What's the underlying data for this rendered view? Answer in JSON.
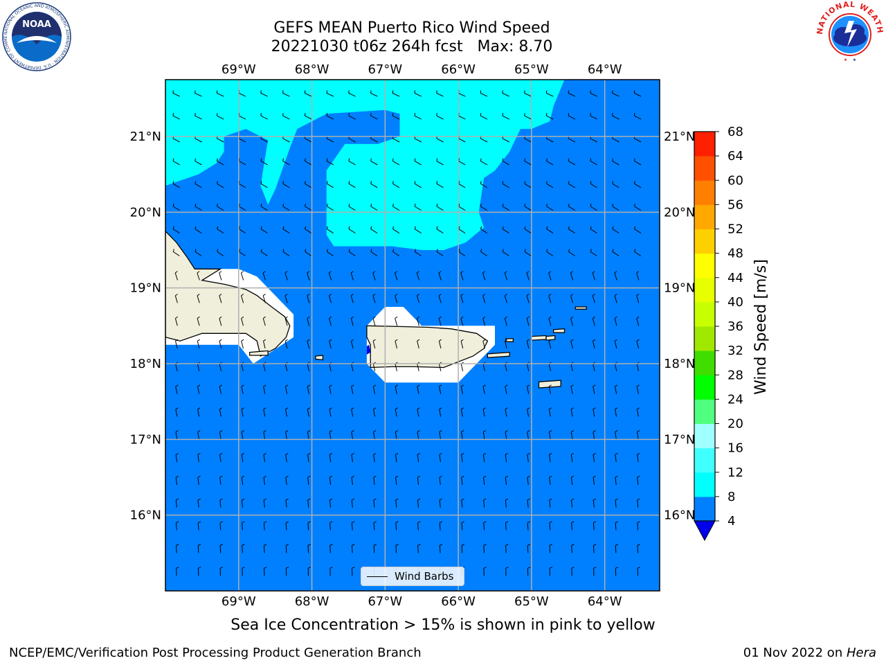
{
  "title_line1": "GEFS MEAN Puerto Rico Wind Speed",
  "title_line2": "20221030 t06z 264h fcst   Max: 8.70",
  "note": "Sea Ice Concentration > 15% is shown in pink to yellow",
  "footer_left": "NCEP/EMC/Verification Post Processing Product Generation Branch",
  "footer_right_date": "01 Nov 2022 on ",
  "footer_right_machine": "Hera",
  "legend_label": "Wind Barbs",
  "logos": {
    "noaa": {
      "text": "NOAA",
      "ring_text": "NATIONAL OCEANIC AND ATMOSPHERIC ADMINISTRATION · U.S. DEPARTMENT OF COMMERCE"
    },
    "nws": {
      "ring_text": "NATIONAL WEATHER SERVICE"
    }
  },
  "map": {
    "lon_range": [
      -70,
      -63.25
    ],
    "lat_range": [
      15,
      21.75
    ],
    "lon_ticks": [
      {
        "value": -69,
        "label": "69°W"
      },
      {
        "value": -68,
        "label": "68°W"
      },
      {
        "value": -67,
        "label": "67°W"
      },
      {
        "value": -66,
        "label": "66°W"
      },
      {
        "value": -65,
        "label": "65°W"
      },
      {
        "value": -64,
        "label": "64°W"
      }
    ],
    "lat_ticks": [
      {
        "value": 21,
        "label": "21°N"
      },
      {
        "value": 20,
        "label": "20°N"
      },
      {
        "value": 19,
        "label": "19°N"
      },
      {
        "value": 18,
        "label": "18°N"
      },
      {
        "value": 17,
        "label": "17°N"
      },
      {
        "value": 16,
        "label": "16°N"
      }
    ],
    "colors": {
      "ocean_4_8": "#0080ff",
      "wind_8_12": "#00ffff",
      "land": "#efefdb",
      "masked": "#ffffff",
      "grid": "#b0b0b0",
      "below_4": "#0000ee"
    },
    "regions": {
      "wind_8_12": [
        [
          [
            -70,
            21.75
          ],
          [
            -64.55,
            21.75
          ],
          [
            -64.7,
            21.4
          ],
          [
            -64.75,
            21.2
          ],
          [
            -65.0,
            21.1
          ],
          [
            -65.15,
            21.1
          ],
          [
            -65.2,
            21.0
          ],
          [
            -65.3,
            20.8
          ],
          [
            -65.5,
            20.55
          ],
          [
            -65.65,
            20.45
          ],
          [
            -65.72,
            20.0
          ],
          [
            -65.65,
            19.8
          ],
          [
            -65.9,
            19.6
          ],
          [
            -66.2,
            19.5
          ],
          [
            -66.5,
            19.5
          ],
          [
            -66.9,
            19.55
          ],
          [
            -67.25,
            19.55
          ],
          [
            -67.7,
            19.55
          ],
          [
            -67.8,
            19.7
          ],
          [
            -67.8,
            20.55
          ],
          [
            -67.55,
            20.9
          ],
          [
            -67.1,
            20.9
          ],
          [
            -66.8,
            21.0
          ],
          [
            -66.8,
            21.3
          ],
          [
            -67.0,
            21.35
          ],
          [
            -67.8,
            21.3
          ],
          [
            -68.2,
            21.1
          ],
          [
            -68.3,
            20.85
          ],
          [
            -68.5,
            20.3
          ],
          [
            -68.6,
            20.1
          ],
          [
            -68.7,
            20.35
          ],
          [
            -68.6,
            20.95
          ],
          [
            -68.9,
            21.1
          ],
          [
            -69.2,
            21.0
          ],
          [
            -69.2,
            20.8
          ],
          [
            -69.3,
            20.65
          ],
          [
            -69.55,
            20.5
          ],
          [
            -70,
            20.35
          ]
        ]
      ]
    },
    "islands": {
      "hispaniola": [
        [
          -70,
          19.75
        ],
        [
          -69.85,
          19.6
        ],
        [
          -69.7,
          19.4
        ],
        [
          -69.6,
          19.25
        ],
        [
          -69.25,
          19.25
        ],
        [
          -69.5,
          19.1
        ],
        [
          -69.2,
          19.05
        ],
        [
          -68.9,
          18.98
        ],
        [
          -68.75,
          18.9
        ],
        [
          -68.55,
          18.75
        ],
        [
          -68.37,
          18.62
        ],
        [
          -68.3,
          18.5
        ],
        [
          -68.35,
          18.35
        ],
        [
          -68.5,
          18.2
        ],
        [
          -68.6,
          18.15
        ],
        [
          -68.7,
          18.1
        ],
        [
          -68.75,
          18.3
        ],
        [
          -68.9,
          18.4
        ],
        [
          -69.2,
          18.4
        ],
        [
          -69.5,
          18.4
        ],
        [
          -69.8,
          18.3
        ],
        [
          -70,
          18.35
        ]
      ],
      "puerto_rico": [
        [
          -67.25,
          18.5
        ],
        [
          -66.8,
          18.49
        ],
        [
          -66.4,
          18.48
        ],
        [
          -66.1,
          18.46
        ],
        [
          -65.75,
          18.4
        ],
        [
          -65.6,
          18.3
        ],
        [
          -65.65,
          18.2
        ],
        [
          -65.8,
          18.1
        ],
        [
          -66.2,
          17.95
        ],
        [
          -66.6,
          17.96
        ],
        [
          -66.9,
          17.96
        ],
        [
          -67.2,
          17.95
        ],
        [
          -67.2,
          18.1
        ],
        [
          -67.2,
          18.25
        ],
        [
          -67.25,
          18.35
        ]
      ],
      "vieques": [
        [
          -65.6,
          18.13
        ],
        [
          -65.3,
          18.15
        ],
        [
          -65.3,
          18.1
        ],
        [
          -65.6,
          18.08
        ]
      ],
      "mona": [
        [
          -67.95,
          18.1
        ],
        [
          -67.85,
          18.11
        ],
        [
          -67.85,
          18.05
        ],
        [
          -67.95,
          18.06
        ]
      ],
      "saona": [
        [
          -68.85,
          18.15
        ],
        [
          -68.6,
          18.17
        ],
        [
          -68.6,
          18.11
        ],
        [
          -68.85,
          18.11
        ]
      ],
      "st_croix": [
        [
          -64.9,
          17.76
        ],
        [
          -64.6,
          17.78
        ],
        [
          -64.6,
          17.7
        ],
        [
          -64.9,
          17.68
        ]
      ],
      "culebra": [
        [
          -65.35,
          18.33
        ],
        [
          -65.25,
          18.33
        ],
        [
          -65.25,
          18.29
        ],
        [
          -65.35,
          18.29
        ]
      ],
      "st_thomas": [
        [
          -65.0,
          18.36
        ],
        [
          -64.8,
          18.37
        ],
        [
          -64.8,
          18.32
        ],
        [
          -65.0,
          18.31
        ]
      ],
      "st_john": [
        [
          -64.8,
          18.36
        ],
        [
          -64.68,
          18.37
        ],
        [
          -64.68,
          18.32
        ],
        [
          -64.8,
          18.31
        ]
      ],
      "tortola": [
        [
          -64.7,
          18.45
        ],
        [
          -64.55,
          18.46
        ],
        [
          -64.55,
          18.41
        ],
        [
          -64.7,
          18.41
        ]
      ],
      "anegada": [
        [
          -64.4,
          18.75
        ],
        [
          -64.25,
          18.75
        ],
        [
          -64.25,
          18.72
        ],
        [
          -64.4,
          18.72
        ]
      ]
    },
    "masks": {
      "hispaniola": [
        [
          -70,
          19.25
        ],
        [
          -69.0,
          19.25
        ],
        [
          -68.75,
          19.15
        ],
        [
          -68.25,
          18.65
        ],
        [
          -68.25,
          18.35
        ],
        [
          -68.8,
          18.0
        ],
        [
          -69.0,
          18.25
        ],
        [
          -70,
          18.25
        ]
      ],
      "puerto_rico": [
        [
          -67.0,
          18.75
        ],
        [
          -66.75,
          18.75
        ],
        [
          -66.5,
          18.5
        ],
        [
          -65.5,
          18.5
        ],
        [
          -65.5,
          18.25
        ],
        [
          -66.0,
          17.75
        ],
        [
          -67.0,
          17.75
        ],
        [
          -67.25,
          18.0
        ],
        [
          -67.25,
          18.5
        ]
      ]
    },
    "low_wind_patch": [
      [
        -67.25,
        18.23
      ],
      [
        -67.22,
        18.25
      ],
      [
        -67.2,
        18.15
      ],
      [
        -67.25,
        18.12
      ]
    ]
  },
  "colorbar": {
    "label": "Wind Speed [m/s]",
    "levels": [
      4,
      8,
      12,
      16,
      20,
      24,
      28,
      32,
      36,
      40,
      44,
      48,
      52,
      56,
      60,
      64,
      68
    ],
    "colors": [
      "#0080ff",
      "#00ffff",
      "#40ffff",
      "#a0ffff",
      "#50ff80",
      "#00ff00",
      "#40dd00",
      "#a0e800",
      "#c8ff00",
      "#e8ff00",
      "#ffff00",
      "#ffd000",
      "#ffa800",
      "#ff8000",
      "#ff5000",
      "#ff2000"
    ],
    "extend_color": "#0000ee"
  }
}
